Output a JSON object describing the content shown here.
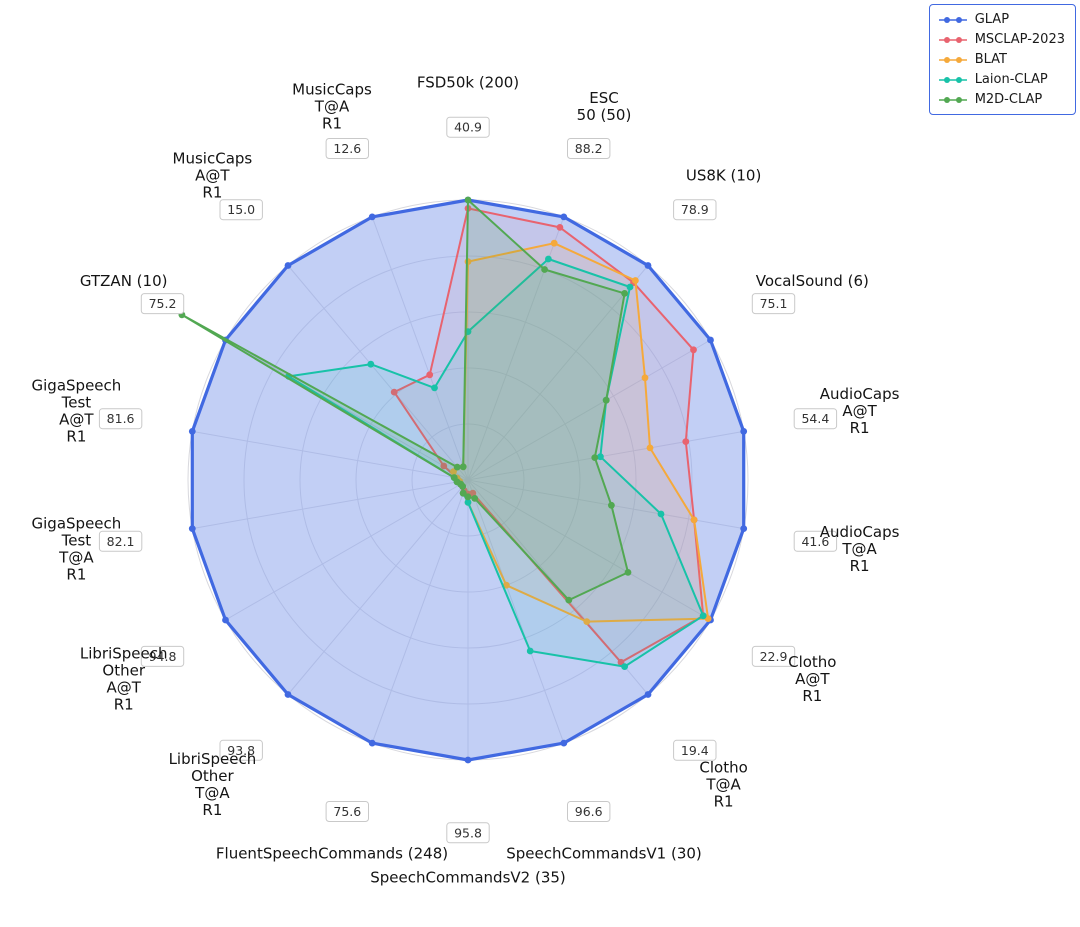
{
  "figure": {
    "background": "#ffffff",
    "legend_border_color": "#4169e1"
  },
  "chart_data": {
    "type": "radar",
    "title": "",
    "normalization": "each axis scaled so that the boxed reference value equals 1.0 at the outer ring; series values are estimated normalized fractions read from the plot",
    "grid": "on",
    "legend_position": "top-right",
    "axes": [
      {
        "label": "FSD50k (200)",
        "tick": "40.9"
      },
      {
        "label": "ESC\n50 (50)",
        "tick": "88.2"
      },
      {
        "label": "US8K (10)",
        "tick": "78.9"
      },
      {
        "label": "VocalSound (6)",
        "tick": "75.1"
      },
      {
        "label": "AudioCaps\nA@T\nR1",
        "tick": "54.4"
      },
      {
        "label": "AudioCaps\nT@A\nR1",
        "tick": "41.6"
      },
      {
        "label": "Clotho\nA@T\nR1",
        "tick": "22.9"
      },
      {
        "label": "Clotho\nT@A\nR1",
        "tick": "19.4"
      },
      {
        "label": "SpeechCommandsV1 (30)",
        "tick": "96.6"
      },
      {
        "label": "SpeechCommandsV2 (35)",
        "tick": "95.8"
      },
      {
        "label": "FluentSpeechCommands (248)",
        "tick": "75.6"
      },
      {
        "label": "LibriSpeech\nOther\nT@A\nR1",
        "tick": "93.8"
      },
      {
        "label": "LibriSpeech\nOther\nA@T\nR1",
        "tick": "94.8"
      },
      {
        "label": "GigaSpeech\nTest\nT@A\nR1",
        "tick": "82.1"
      },
      {
        "label": "GigaSpeech\nTest\nA@T\nR1",
        "tick": "81.6"
      },
      {
        "label": "GTZAN (10)",
        "tick": "75.2"
      },
      {
        "label": "MusicCaps\nA@T\nR1",
        "tick": "15.0"
      },
      {
        "label": "MusicCaps\nT@A\nR1",
        "tick": "12.6"
      }
    ],
    "series": [
      {
        "name": "GLAP",
        "color": "#4169e1",
        "fill_opacity": 0.32,
        "line_width": 3.2,
        "values": [
          1.0,
          1.0,
          1.0,
          1.0,
          1.0,
          1.0,
          1.0,
          1.0,
          1.0,
          1.0,
          1.0,
          1.0,
          1.0,
          1.0,
          1.0,
          1.0,
          1.0,
          1.0
        ]
      },
      {
        "name": "MSCLAP-2023",
        "color": "#e8636f",
        "fill_opacity": 0.08,
        "line_width": 2,
        "values": [
          0.97,
          0.96,
          0.92,
          0.93,
          0.79,
          0.82,
          0.97,
          0.85,
          0.05,
          0.05,
          0.04,
          0.03,
          0.03,
          0.03,
          0.04,
          0.1,
          0.41,
          0.4
        ]
      },
      {
        "name": "BLAT",
        "color": "#f5a93b",
        "fill_opacity": 0.1,
        "line_width": 2,
        "values": [
          0.78,
          0.9,
          0.93,
          0.73,
          0.66,
          0.82,
          0.99,
          0.66,
          0.4,
          0.08,
          0.05,
          0.03,
          0.03,
          0.03,
          0.04,
          0.06,
          0.06,
          0.05
        ]
      },
      {
        "name": "Laion-CLAP",
        "color": "#18c2a8",
        "fill_opacity": 0.1,
        "line_width": 2,
        "values": [
          0.53,
          0.84,
          0.9,
          0.57,
          0.48,
          0.7,
          0.97,
          0.87,
          0.65,
          0.08,
          0.05,
          0.03,
          0.03,
          0.04,
          0.05,
          0.74,
          0.54,
          0.35
        ]
      },
      {
        "name": "M2D-CLAP",
        "color": "#52a852",
        "fill_opacity": 0.16,
        "line_width": 2,
        "values": [
          1.0,
          0.8,
          0.87,
          0.57,
          0.46,
          0.52,
          0.66,
          0.56,
          0.07,
          0.06,
          0.05,
          0.03,
          0.03,
          0.04,
          0.05,
          1.18,
          0.06,
          0.05
        ]
      }
    ]
  }
}
